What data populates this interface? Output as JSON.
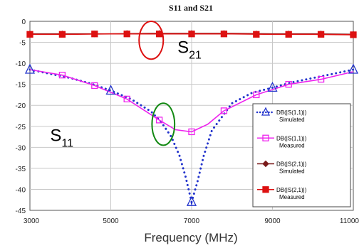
{
  "chart_data": {
    "type": "line",
    "title": "S11 and S21",
    "xlabel": "Frequency (MHz)",
    "ylabel": "",
    "xlim": [
      3000,
      11000
    ],
    "ylim": [
      -45,
      0
    ],
    "x_ticks": [
      "3000",
      "5000",
      "7000",
      "9000",
      "11000"
    ],
    "y_ticks": [
      "0",
      "-5",
      "-10",
      "-15",
      "-20",
      "-25",
      "-30",
      "-35",
      "-40",
      "-45"
    ],
    "grid": true,
    "legend_position": "right",
    "series": [
      {
        "name": "DB(|S(1,1)|)",
        "sub": "Simulated",
        "color": "#2233cc",
        "style": "dotted",
        "marker": "triangle",
        "x": [
          3000,
          3500,
          4000,
          4500,
          5000,
          5500,
          6000,
          6250,
          6500,
          6700,
          6850,
          7000,
          7150,
          7300,
          7500,
          8000,
          8500,
          9000,
          9500,
          10000,
          10500,
          11000
        ],
        "y": [
          -11.5,
          -12.5,
          -13.5,
          -14.8,
          -16.5,
          -18.5,
          -21.5,
          -24,
          -27.5,
          -32,
          -37,
          -43,
          -38,
          -32,
          -26,
          -19.5,
          -17,
          -15.8,
          -14.5,
          -13.5,
          -12.5,
          -11.5
        ],
        "marker_x": [
          3000,
          5000,
          7000,
          9000,
          11000
        ],
        "marker_y": [
          -11.5,
          -16.5,
          -43,
          -15.8,
          -11.5
        ]
      },
      {
        "name": "DB(|S(1,1)|)",
        "sub": "Measured",
        "color": "#ee22ee",
        "style": "solid",
        "marker": "square",
        "x": [
          3000,
          3800,
          4600,
          5400,
          6200,
          6600,
          7000,
          7400,
          7800,
          8600,
          9400,
          10200,
          11000
        ],
        "y": [
          -11.5,
          -12.8,
          -15.3,
          -18.5,
          -23.5,
          -25.8,
          -26.3,
          -24.5,
          -21.3,
          -17.5,
          -15.0,
          -13.8,
          -12.0
        ],
        "marker_x": [
          3800,
          4600,
          5400,
          6200,
          7000,
          7800,
          8600,
          9400,
          10200
        ],
        "marker_y": [
          -12.8,
          -15.3,
          -18.5,
          -23.5,
          -26.3,
          -21.3,
          -17.5,
          -15.0,
          -13.8
        ]
      },
      {
        "name": "DB(|S(2,1)|)",
        "sub": "Simulated",
        "color": "#7a1a1a",
        "style": "solid",
        "marker": "diamond",
        "x": [
          3000,
          4000,
          5000,
          6000,
          7000,
          8000,
          9000,
          10000,
          11000
        ],
        "y": [
          -3.0,
          -3.0,
          -3.0,
          -2.9,
          -2.9,
          -2.9,
          -3.0,
          -3.0,
          -3.1
        ],
        "marker_x": [
          3000,
          3800,
          4600,
          5400,
          6200,
          7000,
          7800,
          8600,
          9400,
          10200,
          11000
        ],
        "marker_y": [
          -3.0,
          -3.0,
          -3.0,
          -2.9,
          -2.9,
          -2.9,
          -2.9,
          -3.0,
          -3.0,
          -3.0,
          -3.1
        ]
      },
      {
        "name": "DB(|S(2,1)|)",
        "sub": "Measured",
        "color": "#dd1111",
        "style": "solid",
        "marker": "square",
        "x": [
          3000,
          4000,
          5000,
          6000,
          7000,
          8000,
          9000,
          10000,
          11000
        ],
        "y": [
          -3.1,
          -3.1,
          -3.0,
          -3.0,
          -3.0,
          -3.0,
          -3.1,
          -3.1,
          -3.2
        ],
        "marker_x": [
          3000,
          3800,
          4600,
          5400,
          6200,
          7000,
          7800,
          8600,
          9400,
          10200,
          11000
        ],
        "marker_y": [
          -3.1,
          -3.1,
          -3.0,
          -3.0,
          -3.0,
          -3.0,
          -3.0,
          -3.1,
          -3.1,
          -3.1,
          -3.2
        ]
      }
    ],
    "annotations": [
      {
        "main": "S",
        "sub": "21",
        "x": 6650,
        "y": -7.5,
        "ellipse_center": [
          6000,
          -4.5
        ],
        "ellipse_radius": [
          300,
          4.5
        ],
        "ellipse_color": "#dd1111"
      },
      {
        "main": "S",
        "sub": "11",
        "x": 3500,
        "y": -28.5,
        "ellipse_center": [
          6300,
          -24.5
        ],
        "ellipse_radius": [
          280,
          5.0
        ],
        "ellipse_color": "#118811"
      }
    ]
  }
}
